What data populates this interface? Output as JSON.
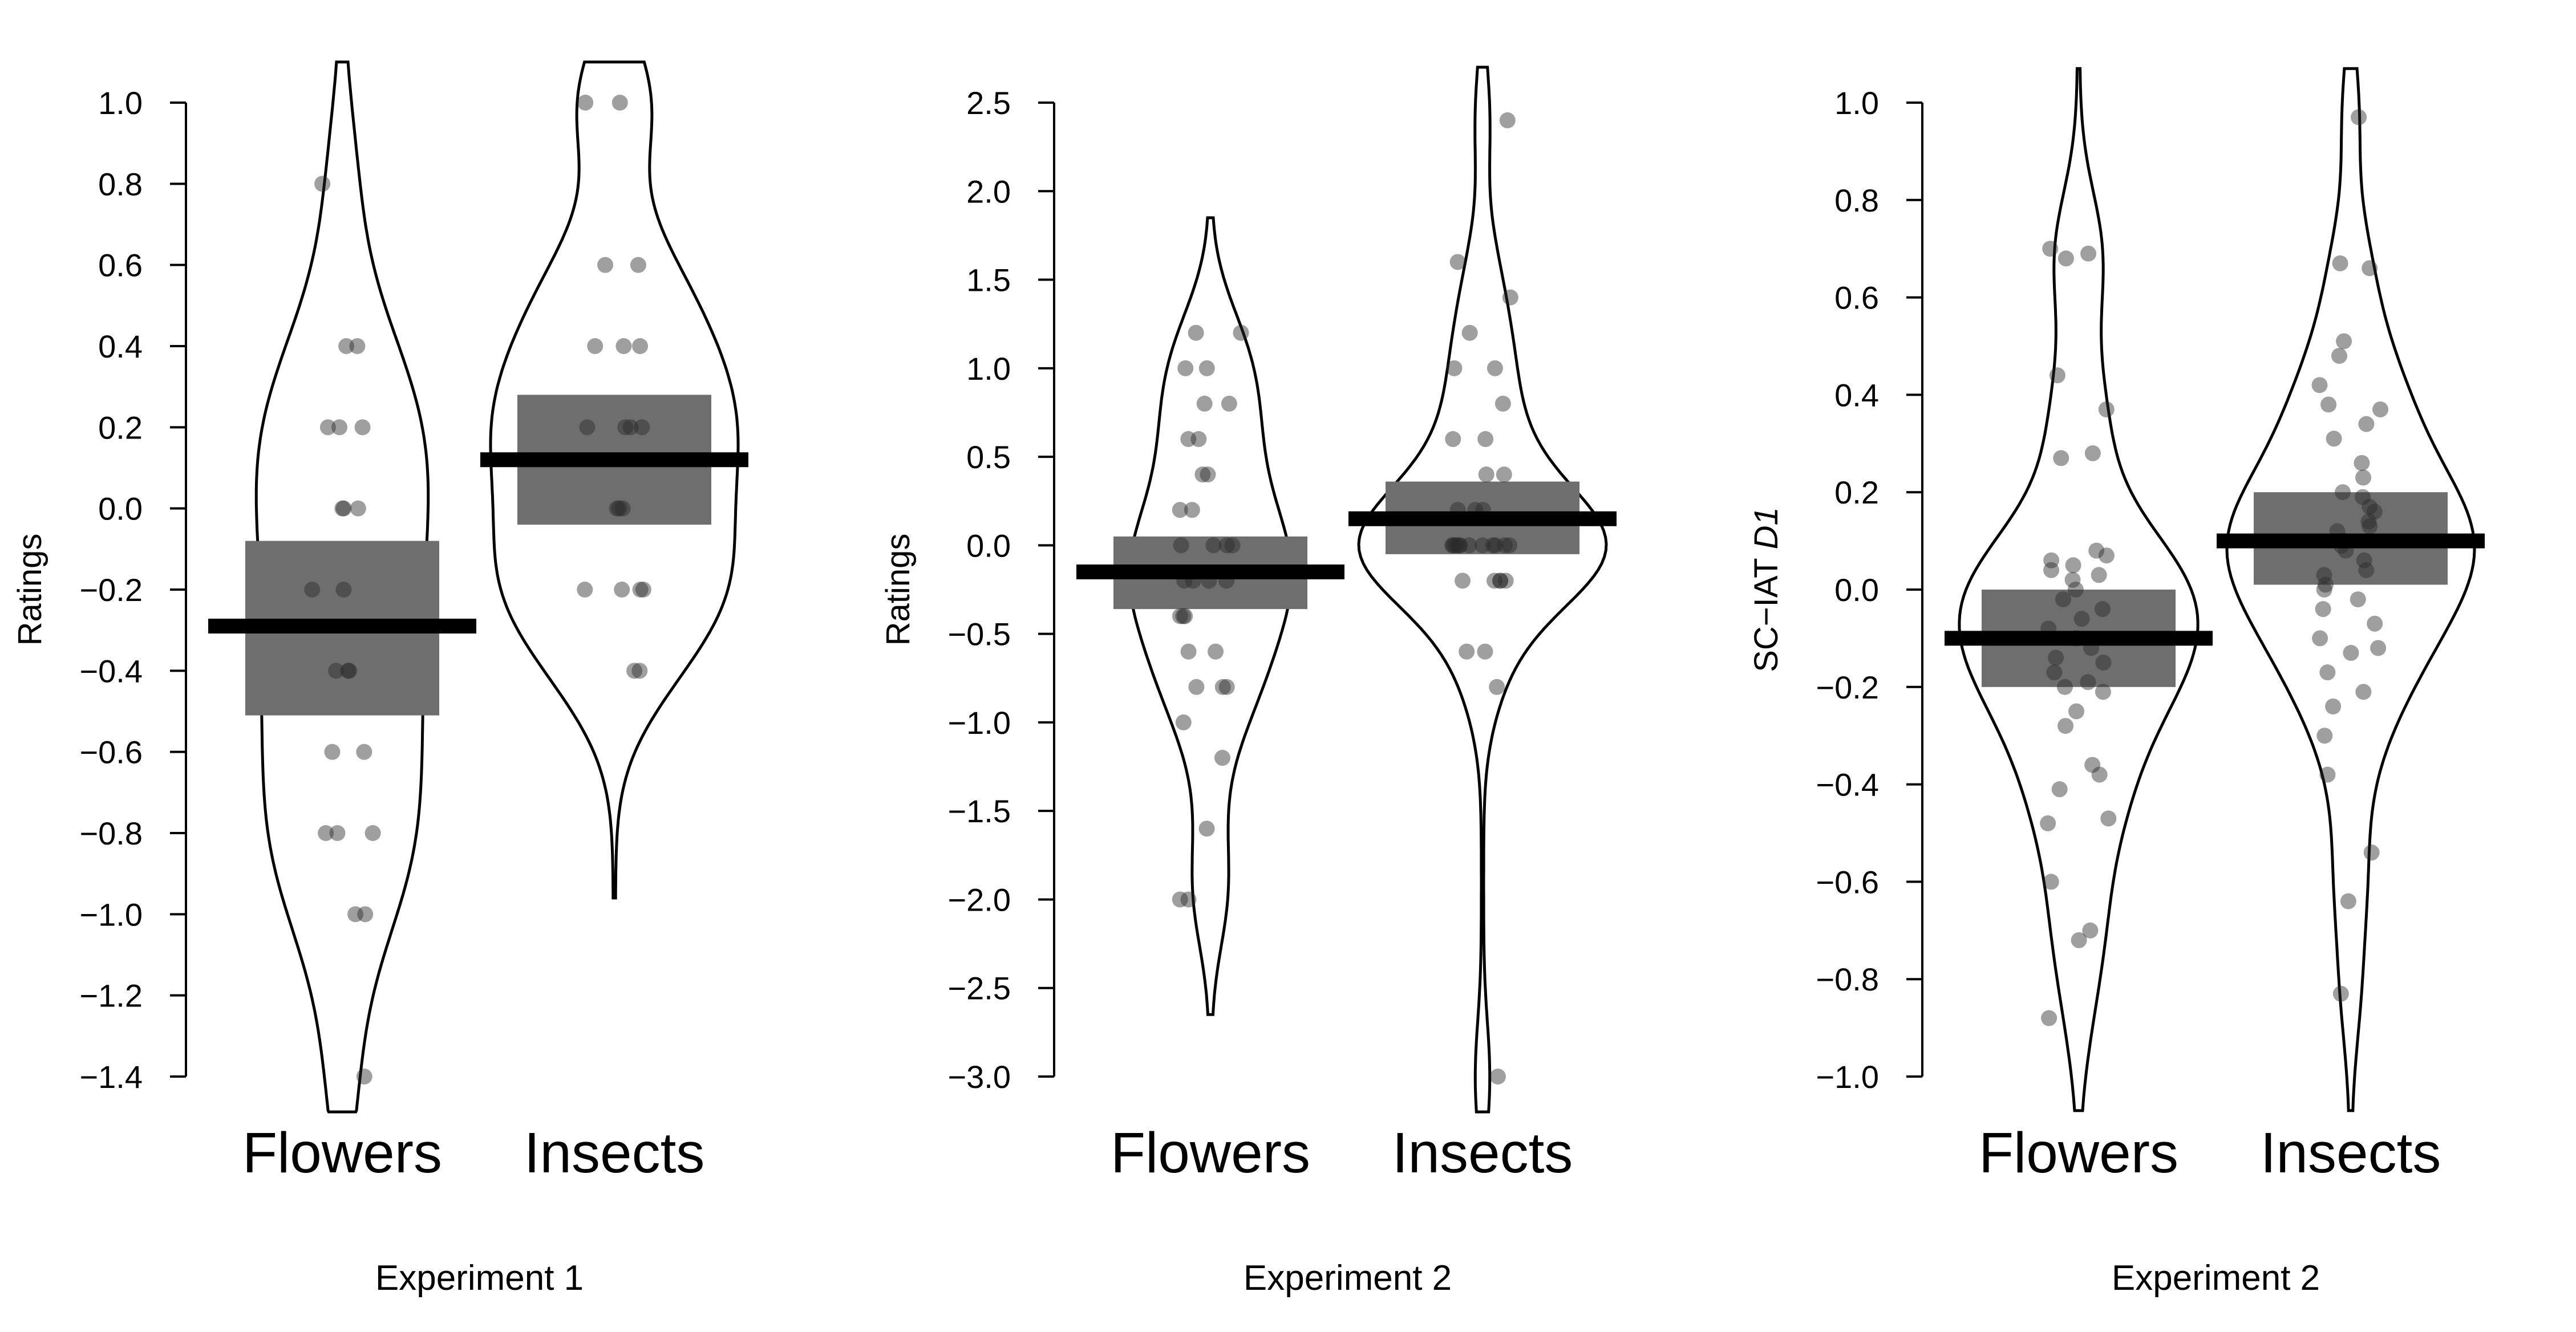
{
  "chart_data": [
    {
      "type": "violin",
      "title": "Experiment 1",
      "ylabel": "Ratings",
      "ylabel_var": "",
      "ylim": [
        -1.4,
        1.0
      ],
      "yticks": [
        "-1.4",
        "-1.2",
        "-1.0",
        "-0.8",
        "-0.6",
        "-0.4",
        "-0.2",
        "0.0",
        "0.2",
        "0.4",
        "0.6",
        "0.8",
        "1.0"
      ],
      "categories": [
        "Flowers",
        "Insects"
      ],
      "series": [
        {
          "category": "Flowers",
          "mean": -0.29,
          "interval": [
            -0.51,
            -0.08
          ],
          "density_range": [
            -1.5,
            1.1
          ],
          "points": [
            0.8,
            0.4,
            0.4,
            0.2,
            0.2,
            0.2,
            0.0,
            0.0,
            0.0,
            -0.2,
            -0.2,
            -0.4,
            -0.4,
            -0.4,
            -0.6,
            -0.6,
            -0.8,
            -0.8,
            -0.8,
            -1.0,
            -1.0,
            -1.4
          ]
        },
        {
          "category": "Insects",
          "mean": 0.12,
          "interval": [
            -0.04,
            0.28
          ],
          "density_range": [
            -0.96,
            1.1
          ],
          "points": [
            1.0,
            1.0,
            0.6,
            0.6,
            0.4,
            0.4,
            0.4,
            0.2,
            0.2,
            0.2,
            0.2,
            0.0,
            0.0,
            0.0,
            -0.2,
            -0.2,
            -0.2,
            -0.2,
            -0.4,
            -0.4
          ]
        }
      ]
    },
    {
      "type": "violin",
      "title": "Experiment 2",
      "ylabel": "Ratings",
      "ylabel_var": "",
      "ylim": [
        -3.0,
        2.5
      ],
      "yticks": [
        "-3.0",
        "-2.5",
        "-2.0",
        "-1.5",
        "-1.0",
        "-0.5",
        "0.0",
        "0.5",
        "1.0",
        "1.5",
        "2.0",
        "2.5"
      ],
      "categories": [
        "Flowers",
        "Insects"
      ],
      "series": [
        {
          "category": "Flowers",
          "mean": -0.15,
          "interval": [
            -0.36,
            0.05
          ],
          "density_range": [
            -2.65,
            1.85
          ],
          "points": [
            1.2,
            1.2,
            1.0,
            1.0,
            0.8,
            0.8,
            0.6,
            0.6,
            0.4,
            0.4,
            0.2,
            0.2,
            0.0,
            0.0,
            0.0,
            0.0,
            -0.2,
            -0.2,
            -0.2,
            -0.2,
            -0.4,
            -0.4,
            -0.4,
            -0.6,
            -0.6,
            -0.8,
            -0.8,
            -0.8,
            -1.0,
            -1.2,
            -1.6,
            -2.0,
            -2.0
          ]
        },
        {
          "category": "Insects",
          "mean": 0.15,
          "interval": [
            -0.05,
            0.36
          ],
          "density_range": [
            -3.2,
            2.7
          ],
          "points": [
            2.4,
            1.6,
            1.4,
            1.2,
            1.0,
            1.0,
            0.8,
            0.6,
            0.6,
            0.4,
            0.4,
            0.2,
            0.2,
            0.2,
            0.0,
            0.0,
            0.0,
            0.0,
            0.0,
            0.0,
            0.0,
            0.0,
            0.0,
            0.0,
            0.0,
            0.0,
            -0.2,
            -0.2,
            -0.2,
            -0.2,
            -0.2,
            -0.6,
            -0.6,
            -0.8,
            -3.0
          ]
        }
      ]
    },
    {
      "type": "violin",
      "title": "Experiment 2",
      "ylabel": "SC−IAT ",
      "ylabel_var": "D1",
      "ylim": [
        -1.0,
        1.0
      ],
      "yticks": [
        "-1.0",
        "-0.8",
        "-0.6",
        "-0.4",
        "-0.2",
        "0.0",
        "0.2",
        "0.4",
        "0.6",
        "0.8",
        "1.0"
      ],
      "categories": [
        "Flowers",
        "Insects"
      ],
      "series": [
        {
          "category": "Flowers",
          "mean": -0.1,
          "interval": [
            -0.2,
            0.0
          ],
          "density_range": [
            -1.07,
            1.07
          ],
          "points": [
            0.7,
            0.69,
            0.68,
            0.44,
            0.37,
            0.28,
            0.27,
            0.08,
            0.07,
            0.06,
            0.05,
            0.04,
            0.03,
            0.02,
            0.0,
            -0.02,
            -0.04,
            -0.06,
            -0.08,
            -0.1,
            -0.12,
            -0.14,
            -0.15,
            -0.17,
            -0.19,
            -0.2,
            -0.21,
            -0.25,
            -0.28,
            -0.36,
            -0.38,
            -0.41,
            -0.47,
            -0.48,
            -0.6,
            -0.7,
            -0.72,
            -0.88
          ]
        },
        {
          "category": "Insects",
          "mean": 0.1,
          "interval": [
            0.01,
            0.2
          ],
          "density_range": [
            -1.07,
            1.07
          ],
          "points": [
            0.97,
            0.67,
            0.66,
            0.51,
            0.48,
            0.42,
            0.38,
            0.37,
            0.34,
            0.31,
            0.26,
            0.23,
            0.2,
            0.19,
            0.17,
            0.16,
            0.14,
            0.13,
            0.12,
            0.1,
            0.09,
            0.08,
            0.06,
            0.04,
            0.03,
            0.01,
            0.0,
            -0.02,
            -0.04,
            -0.07,
            -0.1,
            -0.12,
            -0.13,
            -0.17,
            -0.21,
            -0.24,
            -0.3,
            -0.38,
            -0.54,
            -0.64,
            -0.83
          ]
        }
      ]
    }
  ]
}
